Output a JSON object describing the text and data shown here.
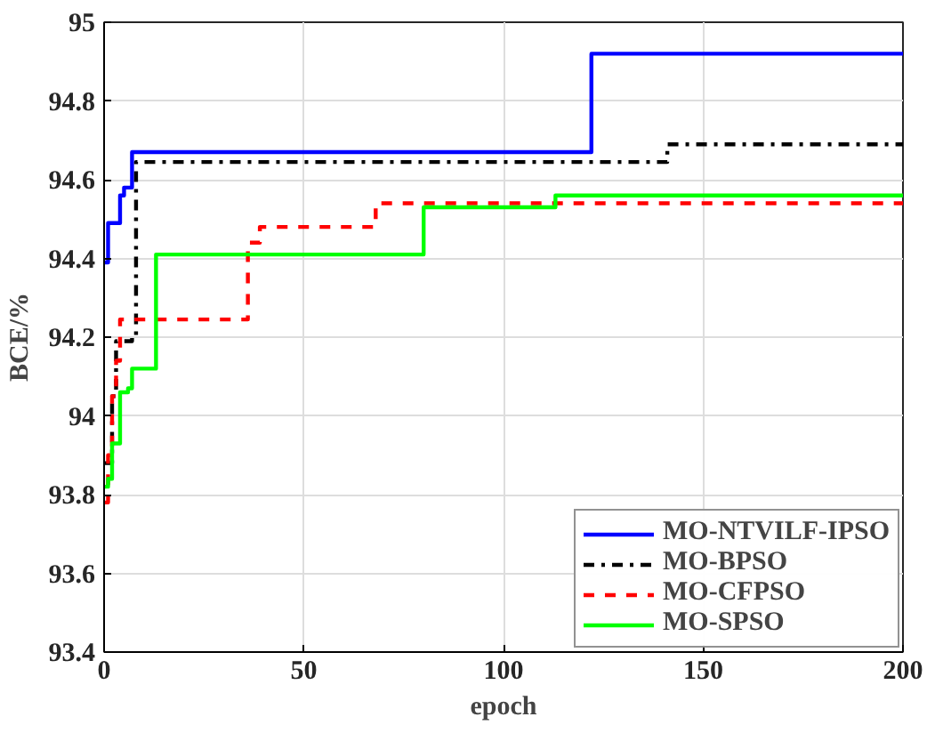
{
  "chart_data": {
    "type": "step",
    "xlabel": "epoch",
    "ylabel": "BCE/%",
    "xlim": [
      0,
      200
    ],
    "ylim": [
      93.4,
      95
    ],
    "xticks": [
      0,
      50,
      100,
      150,
      200
    ],
    "yticks": [
      93.4,
      93.6,
      93.8,
      94,
      94.2,
      94.4,
      94.6,
      94.8,
      95
    ],
    "grid": true,
    "legend": "bottom right",
    "series": [
      {
        "name": "MO-NTVILF-IPSO",
        "color": "#0000ff",
        "line_style": "solid",
        "x": [
          0,
          1,
          4,
          5,
          7,
          122,
          200
        ],
        "values": [
          94.39,
          94.49,
          94.56,
          94.58,
          94.67,
          94.92,
          94.92
        ]
      },
      {
        "name": "MO-BPSO",
        "color": "#000000",
        "line_style": "dashdot",
        "x": [
          0,
          2,
          3,
          7,
          8,
          141,
          200
        ],
        "values": [
          93.88,
          94.05,
          94.19,
          94.2,
          94.645,
          94.69,
          94.69
        ]
      },
      {
        "name": "MO-CFPSO",
        "color": "#ff0000",
        "line_style": "dashed",
        "x": [
          0,
          1,
          2,
          3,
          4,
          36,
          39,
          68,
          200
        ],
        "values": [
          93.78,
          93.9,
          94.05,
          94.14,
          94.245,
          94.44,
          94.48,
          94.54,
          94.54
        ]
      },
      {
        "name": "MO-SPSO",
        "color": "#00ff00",
        "line_style": "solid",
        "x": [
          0,
          1,
          2,
          4,
          6,
          7,
          13,
          80,
          113,
          200
        ],
        "values": [
          93.82,
          93.84,
          93.93,
          94.06,
          94.07,
          94.12,
          94.41,
          94.53,
          94.56,
          94.56
        ]
      }
    ]
  }
}
